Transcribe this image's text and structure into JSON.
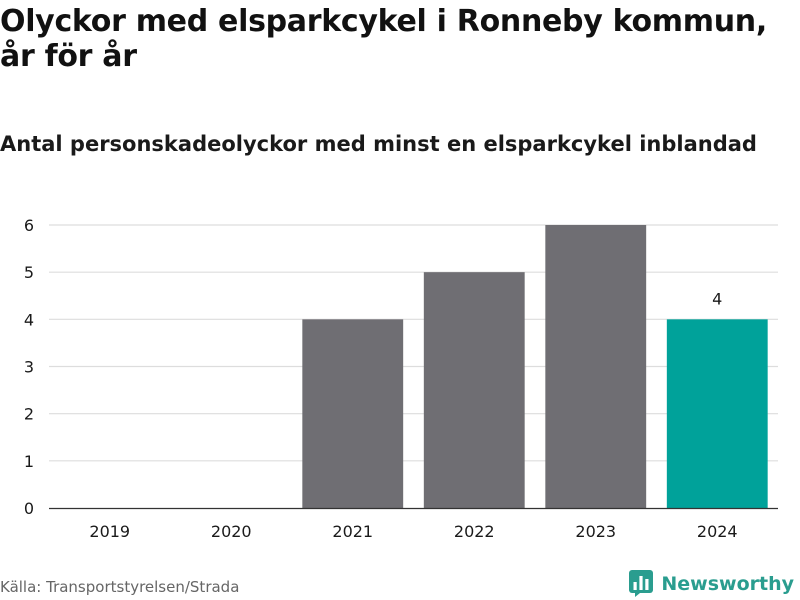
{
  "header": {
    "title": "Olyckor med elsparkcykel i Ronneby kommun, år för år",
    "subtitle": "Antal personskadeolyckor med minst en elsparkcykel inblandad"
  },
  "footer": {
    "source": "Källa: Transportstyrelsen/Strada",
    "brand": "Newsworthy",
    "brand_icon": "bar-chart-logo-icon"
  },
  "colors": {
    "bar": "#6f6e73",
    "highlight": "#00a29a",
    "grid": "#dddddd",
    "text": "#1a1a1a",
    "brand": "#2a9d8f"
  },
  "chart_data": {
    "type": "bar",
    "title": "Olyckor med elsparkcykel i Ronneby kommun, år för år",
    "subtitle": "Antal personskadeolyckor med minst en elsparkcykel inblandad",
    "xlabel": "",
    "ylabel": "",
    "categories": [
      "2019",
      "2020",
      "2021",
      "2022",
      "2023",
      "2024"
    ],
    "values": [
      0,
      0,
      4,
      5,
      6,
      4
    ],
    "highlight_index": 5,
    "data_labels": [
      {
        "index": 5,
        "text": "4"
      }
    ],
    "ylim": [
      0,
      6
    ],
    "yticks": [
      0,
      1,
      2,
      3,
      4,
      5,
      6
    ],
    "grid": true,
    "legend": "none"
  }
}
